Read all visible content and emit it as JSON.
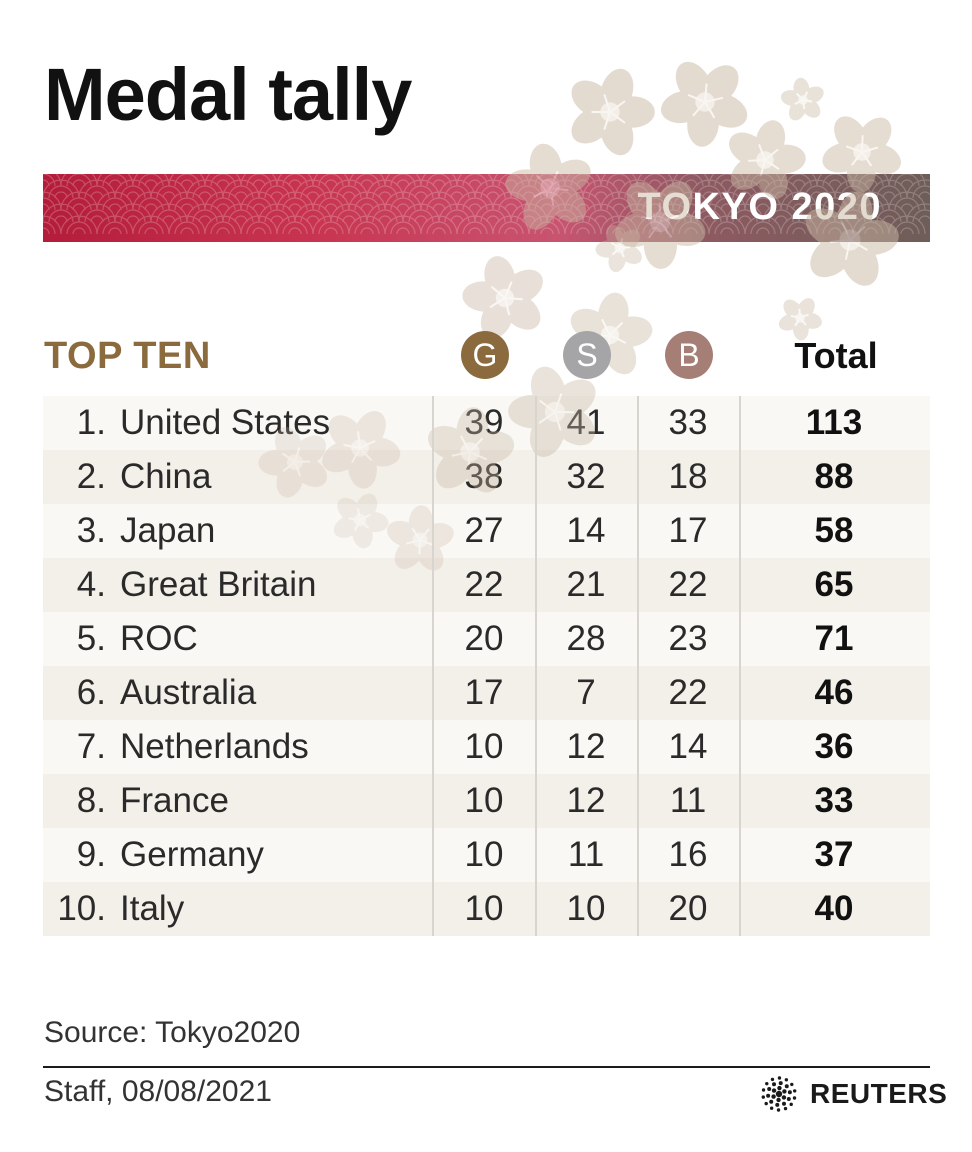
{
  "title": "Medal tally",
  "banner": "TOKYO 2020",
  "section_label": "TOP TEN",
  "medal_headers": {
    "gold": "G",
    "silver": "S",
    "bronze": "B",
    "total": "Total"
  },
  "colors": {
    "gold": "#8b6b3e",
    "silver": "#a5a5a8",
    "bronze": "#a57f76",
    "banner": "#b41d3a"
  },
  "chart_data": {
    "type": "table",
    "title": "Medal tally",
    "columns": [
      "",
      "G",
      "S",
      "B",
      "Total"
    ],
    "rows": [
      {
        "rank": "1.",
        "country": "United States",
        "gold": 39,
        "silver": 41,
        "bronze": 33,
        "total": 113
      },
      {
        "rank": "2.",
        "country": "China",
        "gold": 38,
        "silver": 32,
        "bronze": 18,
        "total": 88
      },
      {
        "rank": "3.",
        "country": "Japan",
        "gold": 27,
        "silver": 14,
        "bronze": 17,
        "total": 58
      },
      {
        "rank": "4.",
        "country": "Great Britain",
        "gold": 22,
        "silver": 21,
        "bronze": 22,
        "total": 65
      },
      {
        "rank": "5.",
        "country": "ROC",
        "gold": 20,
        "silver": 28,
        "bronze": 23,
        "total": 71
      },
      {
        "rank": "6.",
        "country": "Australia",
        "gold": 17,
        "silver": 7,
        "bronze": 22,
        "total": 46
      },
      {
        "rank": "7.",
        "country": "Netherlands",
        "gold": 10,
        "silver": 12,
        "bronze": 14,
        "total": 36
      },
      {
        "rank": "8.",
        "country": "France",
        "gold": 10,
        "silver": 12,
        "bronze": 11,
        "total": 33
      },
      {
        "rank": "9.",
        "country": "Germany",
        "gold": 10,
        "silver": 11,
        "bronze": 16,
        "total": 37
      },
      {
        "rank": "10.",
        "country": "Italy",
        "gold": 10,
        "silver": 10,
        "bronze": 20,
        "total": 40
      }
    ]
  },
  "footer": {
    "source": "Source: Tokyo2020",
    "credit": "Staff, 08/08/2021",
    "logo_text": "REUTERS"
  }
}
